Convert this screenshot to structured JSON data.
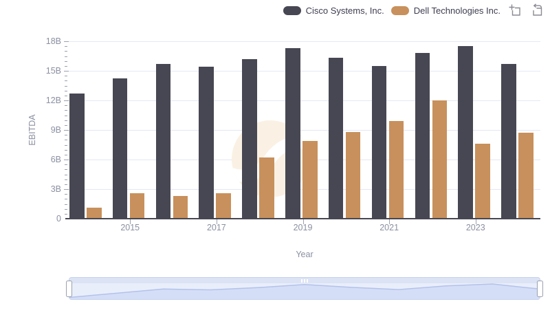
{
  "legend": {
    "items": [
      {
        "label": "Cisco Systems, Inc.",
        "color": "#474753",
        "key": "cisco"
      },
      {
        "label": "Dell Technologies Inc.",
        "color": "#c8905c",
        "key": "dell"
      }
    ]
  },
  "toolbar": {
    "buttons": [
      {
        "name": "zoom-selection",
        "icon": "zoom-selection-icon"
      },
      {
        "name": "reset-zoom",
        "icon": "reset-zoom-icon"
      }
    ]
  },
  "chart_data": {
    "type": "bar",
    "title": "",
    "xlabel": "Year",
    "ylabel": "EBITDA",
    "units": "billions USD",
    "ylim": [
      0,
      18
    ],
    "y_ticks": [
      "0",
      "3B",
      "6B",
      "9B",
      "12B",
      "15B",
      "18B"
    ],
    "categories": [
      2014,
      2015,
      2016,
      2017,
      2018,
      2019,
      2020,
      2021,
      2022,
      2023,
      2024
    ],
    "x_tick_labels": [
      "2015",
      "2017",
      "2019",
      "2021",
      "2023"
    ],
    "x_tick_indices": [
      1,
      3,
      5,
      7,
      9
    ],
    "grid": true,
    "legend_position": "top-right",
    "series": [
      {
        "name": "Cisco Systems, Inc.",
        "key": "cisco",
        "color": "#474753",
        "values": [
          12.7,
          14.2,
          15.7,
          15.4,
          16.2,
          17.3,
          16.3,
          15.5,
          16.8,
          17.5,
          15.7
        ]
      },
      {
        "name": "Dell Technologies Inc.",
        "key": "dell",
        "color": "#c8905c",
        "values": [
          1.1,
          2.6,
          2.3,
          2.6,
          6.2,
          7.9,
          8.8,
          9.9,
          12.0,
          7.6,
          8.7
        ]
      }
    ],
    "navigator": {
      "preview_series": "Cisco Systems, Inc."
    }
  }
}
